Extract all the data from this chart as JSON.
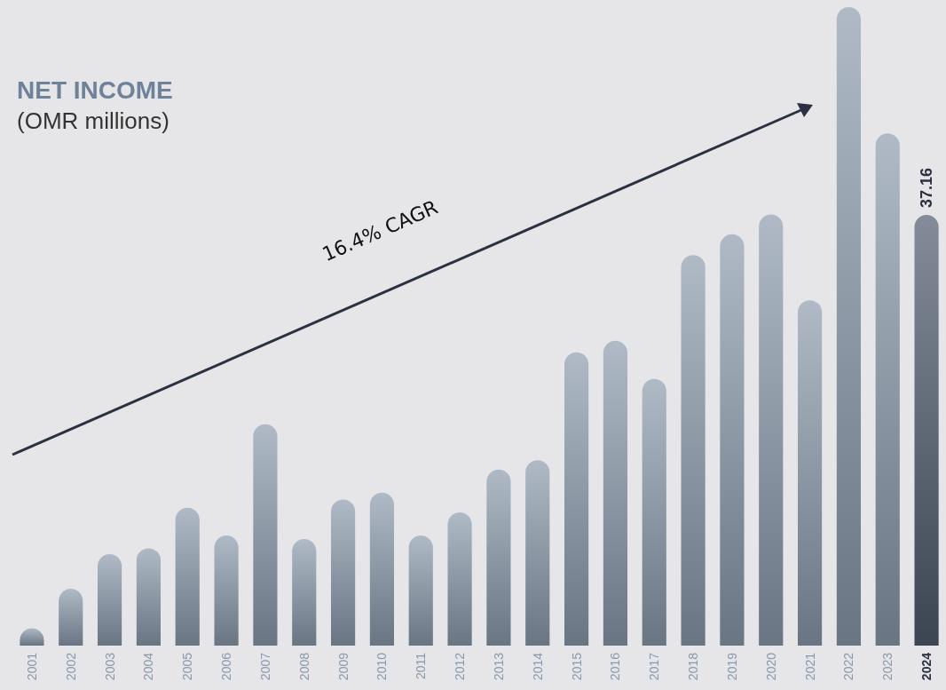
{
  "chart_data": {
    "type": "bar",
    "title": "NET INCOME",
    "subtitle": "(OMR millions)",
    "categories": [
      "2001",
      "2002",
      "2003",
      "2004",
      "2005",
      "2006",
      "2007",
      "2008",
      "2009",
      "2010",
      "2011",
      "2012",
      "2013",
      "2014",
      "2015",
      "2016",
      "2017",
      "2018",
      "2019",
      "2020",
      "2021",
      "2022",
      "2023",
      "2024"
    ],
    "values": [
      1.5,
      4.9,
      7.9,
      8.4,
      11.9,
      9.5,
      19.1,
      9.2,
      12.6,
      13.2,
      9.5,
      11.5,
      15.2,
      16.0,
      25.3,
      26.3,
      23.0,
      33.7,
      35.5,
      37.2,
      29.8,
      55.1,
      44.2,
      37.16
    ],
    "colors": [
      "#8c9cae",
      "#8c9cae",
      "#8c9cae",
      "#8c9cae",
      "#8c9cae",
      "#8c9cae",
      "#8c9cae",
      "#8c9cae",
      "#8c9cae",
      "#8c9cae",
      "#8c9cae",
      "#8c9cae",
      "#8c9cae",
      "#8c9cae",
      "#8c9cae",
      "#8c9cae",
      "#8c9cae",
      "#8c9cae",
      "#8c9cae",
      "#8c9cae",
      "#8c9cae",
      "#8c9cae",
      "#8c9cae",
      "#4e5a6c"
    ],
    "value_labels": [
      null,
      null,
      null,
      null,
      null,
      null,
      null,
      null,
      null,
      null,
      null,
      null,
      null,
      null,
      null,
      null,
      null,
      null,
      null,
      null,
      null,
      null,
      null,
      "37.16"
    ],
    "annotations": [
      "16.4% CAGR"
    ]
  }
}
